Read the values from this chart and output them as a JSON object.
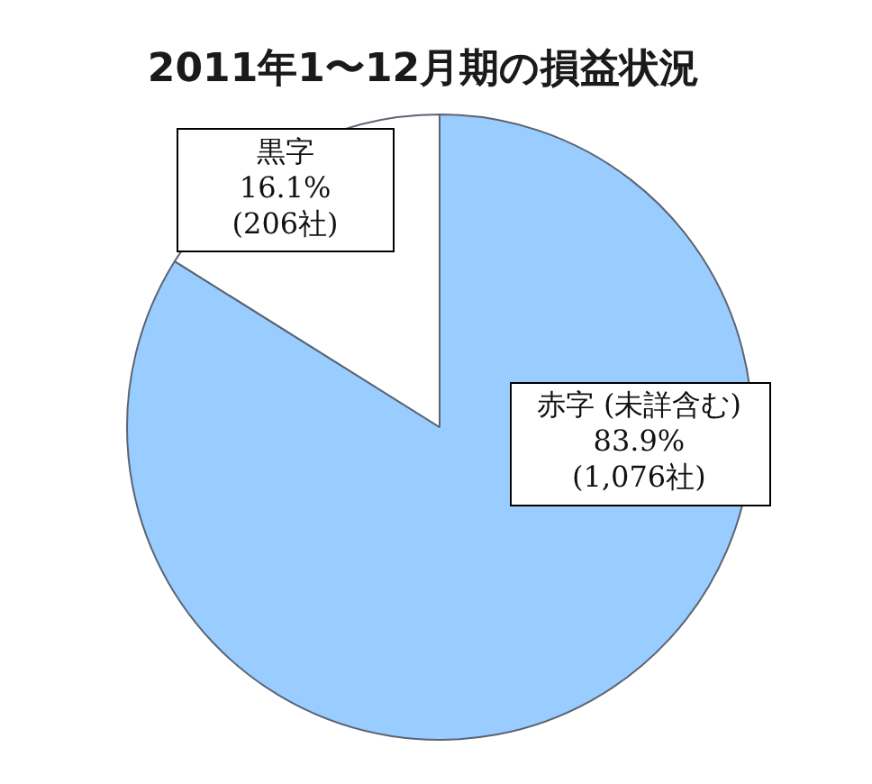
{
  "chart_data": {
    "type": "pie",
    "title": "2011年1〜12月期の損益状況",
    "categories": [
      "赤字 (未詳含む)",
      "黒字"
    ],
    "values": [
      83.9,
      16.1
    ],
    "colors": [
      "#99ccff",
      "#ffffff"
    ],
    "value_labels": [
      "83.9%\n(1,076社)",
      "16.1%\n(206社)"
    ],
    "legend": false
  }
}
